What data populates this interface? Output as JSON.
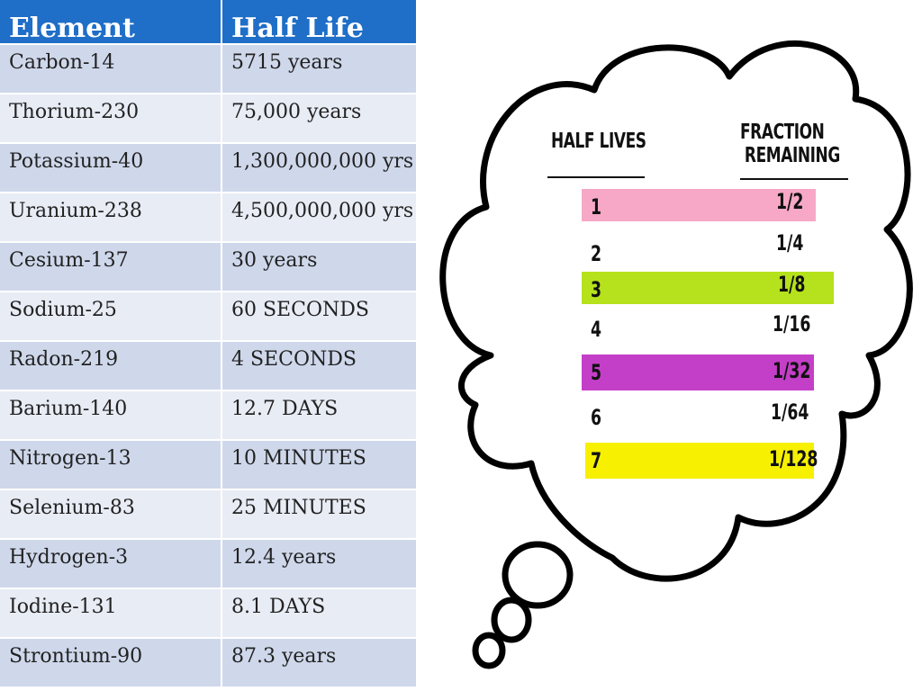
{
  "table": {
    "headers": [
      "Element",
      "Half Life"
    ],
    "rows": [
      [
        "Carbon-14",
        "5715 years"
      ],
      [
        "Thorium-230",
        "75,000 years"
      ],
      [
        "Potassium-40",
        "1,300,000,000 yrs"
      ],
      [
        "Uranium-238",
        "4,500,000,000 yrs"
      ],
      [
        "Cesium-137",
        "30 years"
      ],
      [
        "Sodium-25",
        "60 SECONDS"
      ],
      [
        "Radon-219",
        "4 SECONDS"
      ],
      [
        "Barium-140",
        "12.7 DAYS"
      ],
      [
        "Nitrogen-13",
        "10 MINUTES"
      ],
      [
        "Selenium-83",
        "25 MINUTES"
      ],
      [
        "Hydrogen-3",
        "12.4 years"
      ],
      [
        "Iodine-131",
        "8.1 DAYS"
      ],
      [
        "Strontium-90",
        "87.3 years"
      ]
    ]
  },
  "thought": {
    "header_left": "HALF LIVES",
    "header_right_line1": "FRACTION",
    "header_right_line2": "REMAINING",
    "rows": [
      {
        "half_lives": "1",
        "fraction": "1/2",
        "highlight": "#f7a8c6"
      },
      {
        "half_lives": "2",
        "fraction": "1/4",
        "highlight": ""
      },
      {
        "half_lives": "3",
        "fraction": "1/8",
        "highlight": "#b5e21c"
      },
      {
        "half_lives": "4",
        "fraction": "1/16",
        "highlight": ""
      },
      {
        "half_lives": "5",
        "fraction": "1/32",
        "highlight": "#c43fc8"
      },
      {
        "half_lives": "6",
        "fraction": "1/64",
        "highlight": ""
      },
      {
        "half_lives": "7",
        "fraction": "1/128",
        "highlight": "#f7f000"
      }
    ]
  },
  "colors": {
    "header_blue": "#1f6ec7",
    "row_dark": "#cfd8eb",
    "row_light": "#e8ecf5"
  }
}
